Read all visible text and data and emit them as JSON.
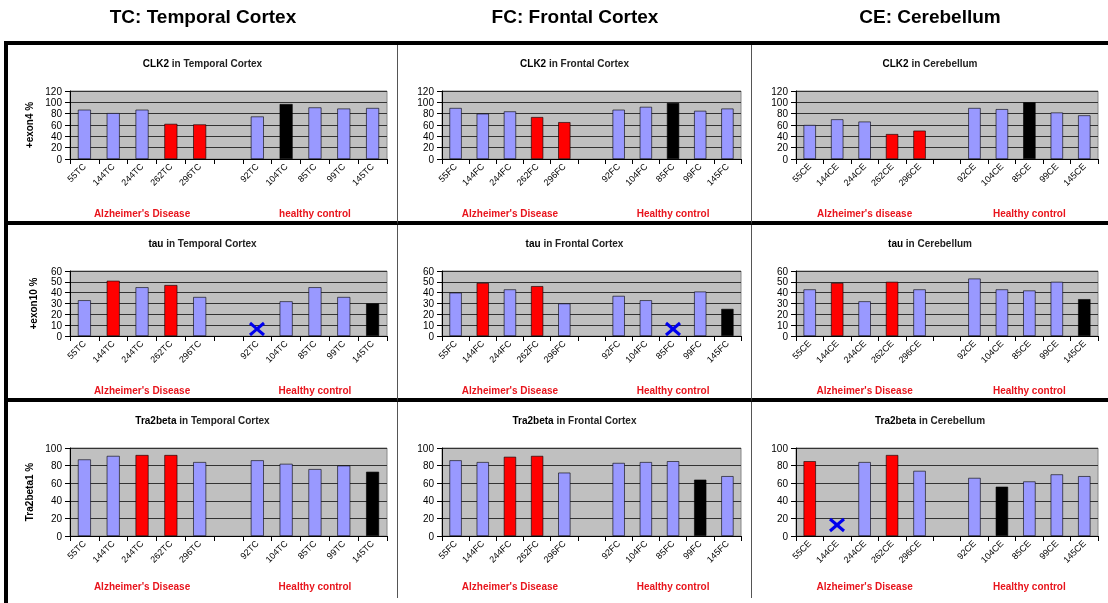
{
  "chart_data": [
    {
      "type": "bar",
      "title": "CLK2 in Temporal Cortex",
      "subtitle": "TC: Temporal Cortex",
      "ylabel": "+exon4 %",
      "categories": [
        "55TC",
        "144TC",
        "244TC",
        "262TC",
        "296TC",
        null,
        "92TC",
        "104TC",
        "85TC",
        "99TC",
        "145TC"
      ],
      "values": [
        87,
        81,
        87,
        62,
        61,
        null,
        75,
        97,
        91,
        89,
        90
      ],
      "colors": [
        "#9999ff",
        "#9999ff",
        "#9999ff",
        "#ff0000",
        "#ff0000",
        null,
        "#9999ff",
        "#000000",
        "#9999ff",
        "#9999ff",
        "#9999ff"
      ],
      "ylim": [
        0,
        120
      ],
      "yticks": [
        0,
        20,
        40,
        60,
        80,
        100,
        120
      ],
      "grid": "y",
      "annotations": [
        "Alzheimer's Disease",
        "healthy control"
      ]
    },
    {
      "type": "bar",
      "title": "CLK2 in Frontal Cortex",
      "subtitle": "FC: Frontal Cortex",
      "categories": [
        "55FC",
        "144FC",
        "244FC",
        "262FC",
        "296FC",
        null,
        "92FC",
        "104FC",
        "85FC",
        "99FC",
        "145FC"
      ],
      "values": [
        90,
        80,
        84,
        74,
        65,
        null,
        87,
        92,
        99,
        85,
        89
      ],
      "colors": [
        "#9999ff",
        "#9999ff",
        "#9999ff",
        "#ff0000",
        "#ff0000",
        null,
        "#9999ff",
        "#9999ff",
        "#000000",
        "#9999ff",
        "#9999ff"
      ],
      "ylim": [
        0,
        120
      ],
      "yticks": [
        0,
        20,
        40,
        60,
        80,
        100,
        120
      ],
      "grid": "y",
      "annotations": [
        "Alzheimer's Disease",
        "Healthy control"
      ]
    },
    {
      "type": "bar",
      "title": "CLK2 in Cerebellum",
      "subtitle": "CE: Cerebellum",
      "categories": [
        "55CE",
        "144CE",
        "244CE",
        "262CE",
        "296CE",
        null,
        "92CE",
        "104CE",
        "85CE",
        "99CE",
        "145CE"
      ],
      "values": [
        60,
        70,
        66,
        44,
        50,
        null,
        90,
        88,
        100,
        82,
        77
      ],
      "colors": [
        "#9999ff",
        "#9999ff",
        "#9999ff",
        "#ff0000",
        "#ff0000",
        null,
        "#9999ff",
        "#9999ff",
        "#000000",
        "#9999ff",
        "#9999ff"
      ],
      "ylim": [
        0,
        120
      ],
      "yticks": [
        0,
        20,
        40,
        60,
        80,
        100,
        120
      ],
      "grid": "y",
      "annotations": [
        "Alzheimer's disease",
        "Healthy control"
      ]
    },
    {
      "type": "bar",
      "title": "tau in Temporal Cortex",
      "ylabel": "+exon10 %",
      "categories": [
        "55TC",
        "144TC",
        "244TC",
        "262TC",
        "296TC",
        null,
        "92TC",
        "104TC",
        "85TC",
        "99TC",
        "145TC"
      ],
      "values": [
        33,
        51,
        45,
        47,
        36,
        null,
        null,
        32,
        45,
        36,
        30
      ],
      "colors": [
        "#9999ff",
        "#ff0000",
        "#9999ff",
        "#ff0000",
        "#9999ff",
        null,
        null,
        "#9999ff",
        "#9999ff",
        "#9999ff",
        "#000000"
      ],
      "ylim": [
        0,
        60
      ],
      "yticks": [
        0,
        10,
        20,
        30,
        40,
        50,
        60
      ],
      "grid": "y",
      "annotations": [
        "Alzheimer's Disease",
        "Healthy control"
      ]
    },
    {
      "type": "bar",
      "title": "tau in Frontal Cortex",
      "categories": [
        "55FC",
        "144FC",
        "244FC",
        "262FC",
        "296FC",
        null,
        "92FC",
        "104FC",
        "85FC",
        "99FC",
        "145FC"
      ],
      "values": [
        40,
        49,
        43,
        46,
        30,
        null,
        37,
        33,
        null,
        41,
        25
      ],
      "colors": [
        "#9999ff",
        "#ff0000",
        "#9999ff",
        "#ff0000",
        "#9999ff",
        null,
        "#9999ff",
        "#9999ff",
        null,
        "#9999ff",
        "#000000"
      ],
      "ylim": [
        0,
        60
      ],
      "yticks": [
        0,
        10,
        20,
        30,
        40,
        50,
        60
      ],
      "grid": "y",
      "annotations": [
        "Alzheimer's Disease",
        "Healthy control"
      ]
    },
    {
      "type": "bar",
      "title": "tau in Cerebellum",
      "categories": [
        "55CE",
        "144CE",
        "244CE",
        "262CE",
        "296CE",
        null,
        "92CE",
        "104CE",
        "85CE",
        "99CE",
        "145CE"
      ],
      "values": [
        43,
        49,
        32,
        50,
        43,
        null,
        53,
        43,
        42,
        50,
        34
      ],
      "colors": [
        "#9999ff",
        "#ff0000",
        "#9999ff",
        "#ff0000",
        "#9999ff",
        null,
        "#9999ff",
        "#9999ff",
        "#9999ff",
        "#9999ff",
        "#000000"
      ],
      "ylim": [
        0,
        60
      ],
      "yticks": [
        0,
        10,
        20,
        30,
        40,
        50,
        60
      ],
      "grid": "y",
      "annotations": [
        "Alzheimer's Disease",
        "Healthy control"
      ]
    },
    {
      "type": "bar",
      "title": "Tra2beta in Temporal Cortex",
      "ylabel": "Tra2beta1 %",
      "categories": [
        "55TC",
        "144TC",
        "244TC",
        "262TC",
        "296TC",
        null,
        "92TC",
        "104TC",
        "85TC",
        "99TC",
        "145TC"
      ],
      "values": [
        87,
        91,
        92,
        92,
        84,
        null,
        86,
        82,
        76,
        80,
        73
      ],
      "colors": [
        "#9999ff",
        "#9999ff",
        "#ff0000",
        "#ff0000",
        "#9999ff",
        null,
        "#9999ff",
        "#9999ff",
        "#9999ff",
        "#9999ff",
        "#000000"
      ],
      "ylim": [
        0,
        100
      ],
      "yticks": [
        0,
        20,
        40,
        60,
        80,
        100
      ],
      "grid": "y",
      "annotations": [
        "Alzheimer's Disease",
        "Healthy control"
      ]
    },
    {
      "type": "bar",
      "title": "Tra2beta in Frontal Cortex",
      "categories": [
        "55FC",
        "144FC",
        "244FC",
        "262FC",
        "296FC",
        null,
        "92FC",
        "104FC",
        "85FC",
        "99FC",
        "145FC"
      ],
      "values": [
        86,
        84,
        90,
        91,
        72,
        null,
        83,
        84,
        85,
        64,
        68
      ],
      "colors": [
        "#9999ff",
        "#9999ff",
        "#ff0000",
        "#ff0000",
        "#9999ff",
        null,
        "#9999ff",
        "#9999ff",
        "#9999ff",
        "#000000",
        "#9999ff"
      ],
      "ylim": [
        0,
        100
      ],
      "yticks": [
        0,
        20,
        40,
        60,
        80,
        100
      ],
      "grid": "y",
      "annotations": [
        "Alzheimer's Disease",
        "Healthy control"
      ]
    },
    {
      "type": "bar",
      "title": "Tra2beta in Cerebellum",
      "categories": [
        "55CE",
        "144CE",
        "244CE",
        "262CE",
        "296CE",
        null,
        "92CE",
        "104CE",
        "85CE",
        "99CE",
        "145CE"
      ],
      "values": [
        85,
        null,
        84,
        92,
        74,
        null,
        66,
        56,
        62,
        70,
        68
      ],
      "colors": [
        "#ff0000",
        null,
        "#9999ff",
        "#ff0000",
        "#9999ff",
        null,
        "#9999ff",
        "#000000",
        "#9999ff",
        "#9999ff",
        "#9999ff"
      ],
      "ylim": [
        0,
        100
      ],
      "yticks": [
        0,
        20,
        40,
        60,
        80,
        100
      ],
      "grid": "y",
      "annotations": [
        "Alzheimer's Disease",
        "Healthy control"
      ]
    }
  ]
}
